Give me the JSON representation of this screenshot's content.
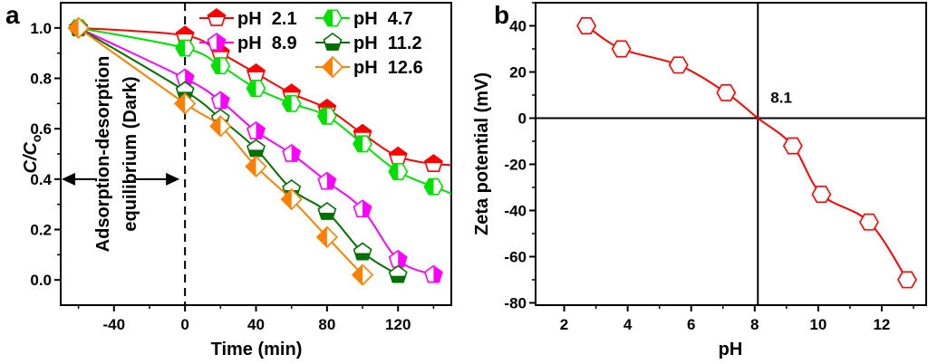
{
  "chart_data": [
    {
      "panel_label": "a",
      "type": "line",
      "xlabel": "Time (min)",
      "ylabel_main": "C/C",
      "ylabel_sub": "o",
      "xlim": [
        -70,
        150
      ],
      "ylim": [
        -0.1,
        1.1
      ],
      "xticks": [
        -40,
        0,
        40,
        80,
        120
      ],
      "yticks": [
        "0.0",
        "0.2",
        "0.4",
        "0.6",
        "0.8",
        "1.0"
      ],
      "grid": false,
      "legend_position": "top-right",
      "annotation": [
        "Adsorption-desorption",
        "equilibrium (Dark)"
      ],
      "vertical_dashed_line_x": 0,
      "x": [
        -60,
        0,
        20,
        40,
        60,
        80,
        100,
        120,
        140
      ],
      "series": [
        {
          "name": "pH  2.1",
          "color": "#ff0000",
          "marker": "pentagon-top-filled",
          "values": [
            1.0,
            0.97,
            0.9,
            0.82,
            0.74,
            0.68,
            0.58,
            0.49,
            0.46
          ]
        },
        {
          "name": "pH  4.7",
          "color": "#00e000",
          "marker": "hexagon-left-filled",
          "values": [
            1.0,
            0.92,
            0.85,
            0.76,
            0.7,
            0.65,
            0.54,
            0.43,
            0.37
          ]
        },
        {
          "name": "pH  8.9",
          "color": "#ff00ff",
          "marker": "pentagon-right-filled",
          "values": [
            1.0,
            0.8,
            0.71,
            0.59,
            0.5,
            0.39,
            0.28,
            0.08,
            0.02
          ]
        },
        {
          "name": "pH  11.2",
          "color": "#007000",
          "marker": "pentagon-bottom-filled",
          "values": [
            1.0,
            0.75,
            0.64,
            0.52,
            0.36,
            0.27,
            0.11,
            0.02,
            null
          ]
        },
        {
          "name": "pH  12.6",
          "color": "#ff8000",
          "marker": "diamond-left-filled",
          "values": [
            1.0,
            0.7,
            0.61,
            0.45,
            0.32,
            0.17,
            0.02,
            null,
            null
          ]
        }
      ]
    },
    {
      "panel_label": "b",
      "type": "line",
      "xlabel": "pH",
      "ylabel": "Zeta potential (mV)",
      "xlim": [
        1.1,
        13.4
      ],
      "ylim": [
        -81,
        50
      ],
      "xticks": [
        2,
        4,
        6,
        8,
        10,
        12
      ],
      "yticks": [
        -80,
        -60,
        -40,
        -20,
        0,
        20,
        40
      ],
      "grid": false,
      "annotation": "8.1",
      "reference_lines": {
        "x": 8.1,
        "y": 0
      },
      "series": [
        {
          "color": "#ff0000",
          "marker": "hexagon-open",
          "x": [
            2.7,
            3.8,
            5.6,
            7.1,
            9.2,
            10.1,
            11.6,
            12.8
          ],
          "values": [
            40,
            30,
            23,
            11,
            -12,
            -33,
            -45,
            -70
          ]
        }
      ]
    }
  ]
}
